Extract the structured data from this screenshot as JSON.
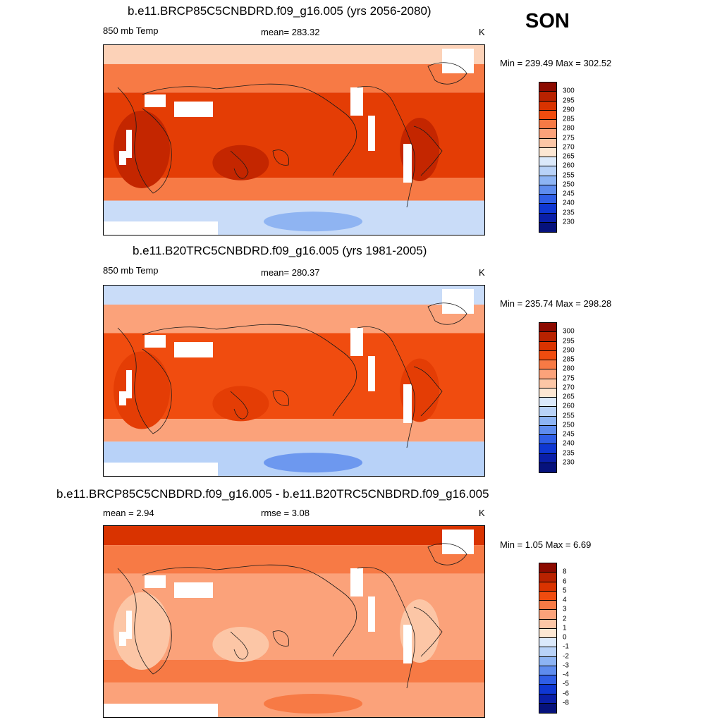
{
  "season": "SON",
  "panels": [
    {
      "title": "b.e11.BRCP85C5CNBDRD.f09_g16.005 (yrs 2056-2080)",
      "left_label": "850 mb Temp",
      "center_label": "mean= 283.32",
      "units": "K",
      "minmax": "Min = 239.49 Max = 302.52",
      "colorbar": {
        "labels": [
          "300",
          "295",
          "290",
          "285",
          "280",
          "275",
          "270",
          "265",
          "260",
          "255",
          "250",
          "245",
          "240",
          "235",
          "230"
        ],
        "colors": [
          "#8c0a00",
          "#b82200",
          "#d93300",
          "#f04c0f",
          "#f77a45",
          "#fba27a",
          "#fcc6a6",
          "#fde7d3",
          "#dbe9fb",
          "#b8d2f8",
          "#8db4f4",
          "#5e8cee",
          "#2f5ee6",
          "#0f37d2",
          "#0a1fa8",
          "#06127c"
        ]
      },
      "map_colors": {
        "polar_n": "#fcd2b8",
        "mid": "#f77a45",
        "tropic": "#e43d05",
        "hot": "#c42600",
        "polar_s": "#c9dcf8",
        "ice": "#8fb4f2"
      }
    },
    {
      "title": "b.e11.B20TRC5CNBDRD.f09_g16.005 (yrs 1981-2005)",
      "left_label": "850 mb Temp",
      "center_label": "mean= 280.37",
      "units": "K",
      "minmax": "Min = 235.74 Max = 298.28",
      "colorbar": {
        "labels": [
          "300",
          "295",
          "290",
          "285",
          "280",
          "275",
          "270",
          "265",
          "260",
          "255",
          "250",
          "245",
          "240",
          "235",
          "230"
        ],
        "colors": [
          "#8c0a00",
          "#b82200",
          "#d93300",
          "#f04c0f",
          "#f77a45",
          "#fba27a",
          "#fcc6a6",
          "#fde7d3",
          "#dbe9fb",
          "#b8d2f8",
          "#8db4f4",
          "#5e8cee",
          "#2f5ee6",
          "#0f37d2",
          "#0a1fa8",
          "#06127c"
        ]
      },
      "map_colors": {
        "polar_n": "#c9dcf8",
        "mid": "#fba27a",
        "tropic": "#f04c0f",
        "hot": "#e43d05",
        "polar_s": "#b8d2f8",
        "ice": "#6d98ef"
      }
    },
    {
      "title": "b.e11.BRCP85C5CNBDRD.f09_g16.005 - b.e11.B20TRC5CNBDRD.f09_g16.005",
      "left_label": "mean =   2.94",
      "center_label": "rmse =   3.08",
      "units": "K",
      "minmax": "Min =   1.05 Max =   6.69",
      "colorbar": {
        "labels": [
          "8",
          "6",
          "5",
          "4",
          "3",
          "2",
          "1",
          "0",
          "-1",
          "-2",
          "-3",
          "-4",
          "-5",
          "-6",
          "-8"
        ],
        "colors": [
          "#8c0a00",
          "#b82200",
          "#d93300",
          "#f04c0f",
          "#f77a45",
          "#fba27a",
          "#fcc6a6",
          "#fde7d3",
          "#dbe9fb",
          "#b8d2f8",
          "#8db4f4",
          "#5e8cee",
          "#2f5ee6",
          "#0f37d2",
          "#0a1fa8",
          "#06127c"
        ]
      },
      "map_colors": {
        "polar_n": "#d93300",
        "mid": "#f77a45",
        "tropic": "#fba27a",
        "hot": "#fcc6a6",
        "polar_s": "#fba27a",
        "ice": "#f77a45"
      }
    }
  ]
}
